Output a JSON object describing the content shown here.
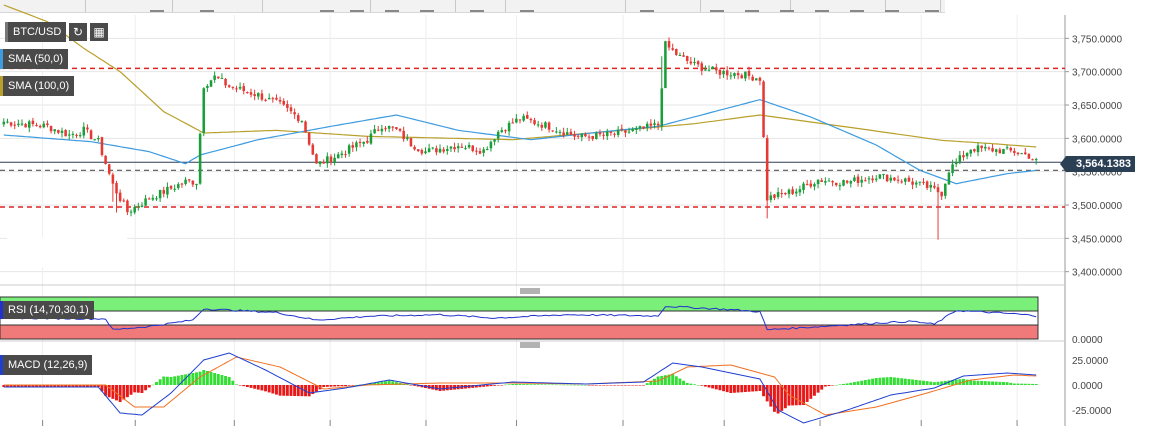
{
  "symbol": "BTC/USD",
  "indicators": {
    "sma50": "SMA (50,0)",
    "sma100": "SMA (100,0)",
    "rsi": "RSI (14,70,30,1)",
    "macd": "MACD (12,26,9)"
  },
  "current_price_label": "3,564.1383",
  "colors": {
    "up": "#1a9e3a",
    "down": "#e53935",
    "sma50": "#3d9be0",
    "sma100": "#b8a02a",
    "support_resistance": "#e02020",
    "pivot": "#555555",
    "rsi_line": "#2233cc",
    "rsi_overbought_zone": "#7aef7a",
    "rsi_oversold_zone": "#f07a7a",
    "macd_line": "#1e3fd0",
    "signal_line": "#f07020"
  },
  "chart_data": [
    {
      "type": "candlestick",
      "title": "BTC/USD",
      "ylim": [
        3380,
        3785
      ],
      "y_ticks": [
        "3,750.0000",
        "3,700.0000",
        "3,650.0000",
        "3,600.0000",
        "3,550.0000",
        "3,500.0000",
        "3,450.0000",
        "3,400.0000"
      ],
      "y_tick_values": [
        3750,
        3700,
        3650,
        3600,
        3550,
        3500,
        3450,
        3400
      ],
      "horizontal_levels": [
        {
          "value": 3705,
          "style": "dashed",
          "color": "red"
        },
        {
          "value": 3497,
          "style": "dashed",
          "color": "red"
        },
        {
          "value": 3552,
          "style": "dashed",
          "color": "gray"
        },
        {
          "value": 3564.1383,
          "style": "solid",
          "color": "navy",
          "label": "3,564.1383"
        }
      ],
      "anchors": [
        [
          0,
          3625
        ],
        [
          12,
          3618
        ],
        [
          18,
          3605
        ],
        [
          22,
          3612
        ],
        [
          26,
          3595
        ],
        [
          30,
          3530
        ],
        [
          34,
          3490
        ],
        [
          40,
          3510
        ],
        [
          50,
          3535
        ],
        [
          53,
          3535
        ],
        [
          55,
          3680
        ],
        [
          58,
          3692
        ],
        [
          62,
          3678
        ],
        [
          70,
          3665
        ],
        [
          76,
          3650
        ],
        [
          82,
          3628
        ],
        [
          86,
          3560
        ],
        [
          92,
          3575
        ],
        [
          100,
          3598
        ],
        [
          104,
          3620
        ],
        [
          108,
          3612
        ],
        [
          112,
          3592
        ],
        [
          116,
          3580
        ],
        [
          125,
          3590
        ],
        [
          132,
          3582
        ],
        [
          136,
          3610
        ],
        [
          142,
          3630
        ],
        [
          150,
          3618
        ],
        [
          158,
          3602
        ],
        [
          166,
          3605
        ],
        [
          174,
          3612
        ],
        [
          180,
          3620
        ],
        [
          182,
          3740
        ],
        [
          186,
          3722
        ],
        [
          190,
          3710
        ],
        [
          196,
          3700
        ],
        [
          202,
          3697
        ],
        [
          208,
          3690
        ],
        [
          210,
          3510
        ],
        [
          218,
          3522
        ],
        [
          224,
          3538
        ],
        [
          232,
          3534
        ],
        [
          240,
          3544
        ],
        [
          248,
          3537
        ],
        [
          254,
          3527
        ],
        [
          258,
          3518
        ],
        [
          260,
          3553
        ],
        [
          266,
          3585
        ],
        [
          272,
          3583
        ],
        [
          278,
          3580
        ],
        [
          282,
          3574
        ],
        [
          284,
          3565
        ]
      ],
      "n_candles": 285,
      "sma50_values": [
        [
          0,
          3605
        ],
        [
          24,
          3595
        ],
        [
          40,
          3580
        ],
        [
          50,
          3562
        ],
        [
          54,
          3575
        ],
        [
          70,
          3598
        ],
        [
          90,
          3618
        ],
        [
          108,
          3635
        ],
        [
          125,
          3612
        ],
        [
          145,
          3598
        ],
        [
          165,
          3610
        ],
        [
          180,
          3618
        ],
        [
          208,
          3658
        ],
        [
          222,
          3632
        ],
        [
          240,
          3590
        ],
        [
          252,
          3552
        ],
        [
          262,
          3532
        ],
        [
          276,
          3547
        ],
        [
          284,
          3552
        ]
      ],
      "sma100_values": [
        [
          0,
          3800
        ],
        [
          12,
          3775
        ],
        [
          22,
          3735
        ],
        [
          32,
          3700
        ],
        [
          44,
          3640
        ],
        [
          55,
          3608
        ],
        [
          75,
          3612
        ],
        [
          100,
          3603
        ],
        [
          140,
          3598
        ],
        [
          170,
          3612
        ],
        [
          190,
          3622
        ],
        [
          208,
          3635
        ],
        [
          236,
          3614
        ],
        [
          258,
          3597
        ],
        [
          272,
          3592
        ],
        [
          284,
          3587
        ]
      ],
      "x_tick_positions": [
        0.04,
        0.127,
        0.22,
        0.31,
        0.4,
        0.485,
        0.585,
        0.68,
        0.77,
        0.865,
        0.955
      ]
    },
    {
      "type": "line",
      "title": "RSI (14,70,30,1)",
      "ylim": [
        0,
        100
      ],
      "y_ticks": [
        "0.0000"
      ],
      "overbought": 70,
      "oversold": 30,
      "rsi_values": [
        [
          0,
          50
        ],
        [
          28,
          48
        ],
        [
          30,
          22
        ],
        [
          40,
          30
        ],
        [
          52,
          45
        ],
        [
          55,
          72
        ],
        [
          75,
          63
        ],
        [
          86,
          45
        ],
        [
          100,
          54
        ],
        [
          120,
          58
        ],
        [
          135,
          50
        ],
        [
          155,
          58
        ],
        [
          180,
          55
        ],
        [
          182,
          78
        ],
        [
          200,
          70
        ],
        [
          208,
          65
        ],
        [
          210,
          22
        ],
        [
          240,
          38
        ],
        [
          250,
          42
        ],
        [
          256,
          35
        ],
        [
          262,
          68
        ],
        [
          278,
          60
        ],
        [
          284,
          55
        ]
      ]
    },
    {
      "type": "histogram+line",
      "title": "MACD (12,26,9)",
      "ylim": [
        -35,
        35
      ],
      "y_ticks": [
        "25.0000",
        "0.0000",
        "-25.0000"
      ],
      "y_tick_values": [
        25,
        0,
        -25
      ],
      "macd_values": [
        [
          0,
          -2
        ],
        [
          26,
          -2
        ],
        [
          32,
          -28
        ],
        [
          38,
          -30
        ],
        [
          46,
          -8
        ],
        [
          55,
          25
        ],
        [
          62,
          32
        ],
        [
          72,
          15
        ],
        [
          84,
          -8
        ],
        [
          94,
          -3
        ],
        [
          106,
          5
        ],
        [
          120,
          -4
        ],
        [
          140,
          3
        ],
        [
          160,
          1
        ],
        [
          176,
          3
        ],
        [
          184,
          22
        ],
        [
          192,
          18
        ],
        [
          208,
          6
        ],
        [
          213,
          -25
        ],
        [
          220,
          -38
        ],
        [
          232,
          -25
        ],
        [
          244,
          -10
        ],
        [
          256,
          -3
        ],
        [
          264,
          9
        ],
        [
          276,
          12
        ],
        [
          284,
          10
        ]
      ],
      "signal_values": [
        [
          0,
          0
        ],
        [
          28,
          0
        ],
        [
          36,
          -22
        ],
        [
          44,
          -22
        ],
        [
          54,
          8
        ],
        [
          64,
          28
        ],
        [
          76,
          18
        ],
        [
          88,
          -4
        ],
        [
          100,
          0
        ],
        [
          120,
          2
        ],
        [
          140,
          2
        ],
        [
          160,
          1
        ],
        [
          180,
          4
        ],
        [
          188,
          18
        ],
        [
          200,
          20
        ],
        [
          212,
          8
        ],
        [
          216,
          -10
        ],
        [
          226,
          -30
        ],
        [
          240,
          -22
        ],
        [
          254,
          -8
        ],
        [
          266,
          5
        ],
        [
          278,
          10
        ],
        [
          284,
          9
        ]
      ]
    }
  ]
}
